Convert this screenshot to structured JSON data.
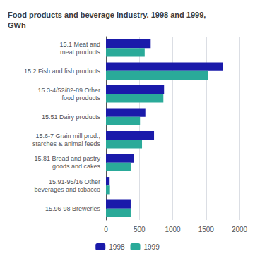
{
  "chart_data": {
    "type": "bar",
    "orientation": "horizontal",
    "title": "Food products and beverage industry. 1998 and 1999,\nGWh",
    "categories": [
      "15.1 Meat and\nmeat products",
      "15.2 Fish and fish products",
      "15.3-4/52/82-89 Other\nfood products",
      "15.51 Dairy products",
      "15.6-7 Grain mill prod.,\nstarches & animal feeds",
      "15.81 Bread and pastry\ngoods and cakes",
      "15.91-95/16 Other\nbeverages and tobacco",
      "15.96-98 Breweries"
    ],
    "series": [
      {
        "name": "1998",
        "color": "#1a1aaa",
        "values": [
          670,
          1750,
          870,
          590,
          720,
          415,
          55,
          370
        ]
      },
      {
        "name": "1999",
        "color": "#2aaa99",
        "values": [
          580,
          1530,
          860,
          510,
          540,
          370,
          60,
          370
        ]
      }
    ],
    "xlim": [
      0,
      2000
    ],
    "xticks": [
      0,
      500,
      1000,
      1500,
      2000
    ],
    "grid": true,
    "legend": "bottom"
  }
}
